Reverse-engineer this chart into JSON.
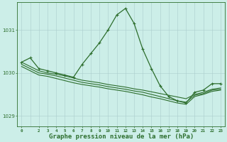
{
  "background_color": "#cceee8",
  "grid_color": "#aacccc",
  "line_color": "#2d6e2d",
  "xlabel": "Graphe pression niveau de la mer (hPa)",
  "xlabel_fontsize": 6.5,
  "xlabel_color": "#2d6e2d",
  "xlim": [
    -0.5,
    23.5
  ],
  "ylim": [
    1028.75,
    1031.65
  ],
  "yticks": [
    1029,
    1030,
    1031
  ],
  "xticks": [
    0,
    2,
    3,
    4,
    5,
    6,
    7,
    8,
    9,
    10,
    11,
    12,
    13,
    14,
    15,
    16,
    17,
    18,
    19,
    20,
    21,
    22,
    23
  ],
  "series": [
    {
      "x": [
        0,
        1,
        2,
        3,
        4,
        5,
        6,
        7,
        8,
        9,
        10,
        11,
        12,
        13,
        14,
        15,
        16,
        17,
        18,
        19,
        20,
        21,
        22,
        23
      ],
      "y": [
        1030.25,
        1030.35,
        1030.1,
        1030.05,
        1030.0,
        1029.95,
        1029.9,
        1030.2,
        1030.45,
        1030.7,
        1031.0,
        1031.35,
        1031.5,
        1031.15,
        1030.55,
        1030.1,
        1029.7,
        1029.45,
        1029.35,
        1029.3,
        1029.55,
        1029.6,
        1029.75,
        1029.75
      ],
      "marker": "+",
      "markersize": 3,
      "linewidth": 0.9
    },
    {
      "x": [
        0,
        2,
        3,
        4,
        5,
        6,
        7,
        8,
        9,
        10,
        11,
        12,
        13,
        14,
        15,
        16,
        17,
        18,
        19,
        20,
        21,
        22,
        23
      ],
      "y": [
        1030.25,
        1030.05,
        1030.0,
        1029.97,
        1029.93,
        1029.88,
        1029.83,
        1029.8,
        1029.77,
        1029.73,
        1029.7,
        1029.67,
        1029.63,
        1029.6,
        1029.56,
        1029.52,
        1029.48,
        1029.44,
        1029.4,
        1029.5,
        1029.55,
        1029.62,
        1029.65
      ],
      "marker": null,
      "markersize": 0,
      "linewidth": 0.8
    },
    {
      "x": [
        0,
        2,
        3,
        4,
        5,
        6,
        7,
        8,
        9,
        10,
        11,
        12,
        13,
        14,
        15,
        16,
        17,
        18,
        19,
        20,
        21,
        22,
        23
      ],
      "y": [
        1030.2,
        1030.0,
        1029.97,
        1029.93,
        1029.88,
        1029.83,
        1029.78,
        1029.75,
        1029.72,
        1029.68,
        1029.65,
        1029.62,
        1029.58,
        1029.55,
        1029.5,
        1029.45,
        1029.4,
        1029.35,
        1029.32,
        1029.48,
        1029.52,
        1029.6,
        1029.62
      ],
      "marker": null,
      "markersize": 0,
      "linewidth": 0.8
    },
    {
      "x": [
        0,
        2,
        3,
        4,
        5,
        6,
        7,
        8,
        9,
        10,
        11,
        12,
        13,
        14,
        15,
        16,
        17,
        18,
        19,
        20,
        21,
        22,
        23
      ],
      "y": [
        1030.15,
        1029.95,
        1029.92,
        1029.87,
        1029.82,
        1029.77,
        1029.73,
        1029.7,
        1029.67,
        1029.63,
        1029.6,
        1029.57,
        1029.53,
        1029.49,
        1029.44,
        1029.4,
        1029.35,
        1029.3,
        1029.27,
        1029.45,
        1029.5,
        1029.57,
        1029.6
      ],
      "marker": null,
      "markersize": 0,
      "linewidth": 0.8
    }
  ],
  "figsize": [
    3.2,
    2.0
  ],
  "dpi": 100
}
